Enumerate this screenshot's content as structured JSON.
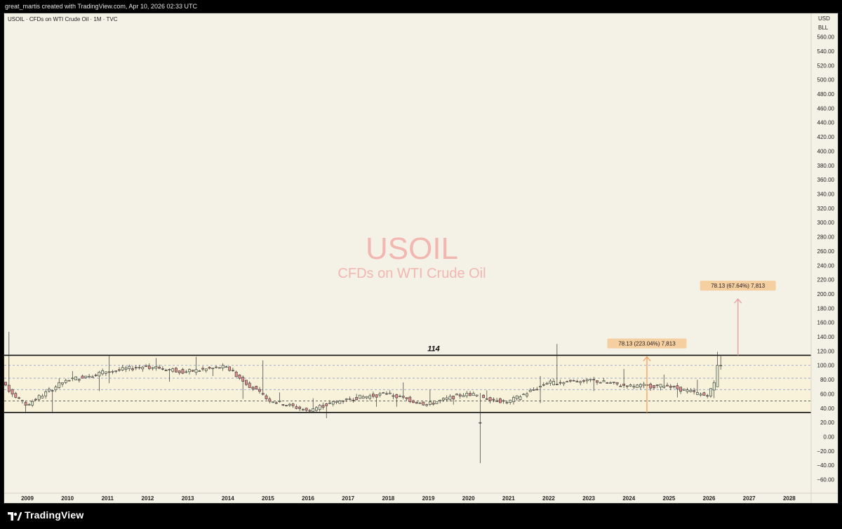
{
  "header": {
    "attribution": "great_martis created with TradingView.com, Apr 10, 2026 02:33 UTC"
  },
  "footer": {
    "brand": "TradingView",
    "logo_icon": "tradingview-logo-icon"
  },
  "colors": {
    "background": "#f4f1e6",
    "bull_candle": "#e3ecd0",
    "bear_candle": "#e38d8d",
    "wick": "#333333",
    "arrow_orange": "#f2a46c",
    "arrow_pink": "#eaa1a1",
    "label_bg": "#f6cfa1",
    "watermark": "#f2b7b0",
    "range_fill": "#f7f2d9",
    "dashed_blue": "#8a9cd0"
  },
  "chart_data": {
    "type": "candlestick",
    "symbol_line": "USOIL · CFDs on WTI Crude Oil · 1M · TVC",
    "watermark": {
      "symbol": "USOIL",
      "description": "CFDs on WTI Crude Oil"
    },
    "currency_badges": [
      "USD",
      "BLL"
    ],
    "y_axis": {
      "min": -60,
      "max": 560,
      "ticks": [
        "560.00",
        "540.00",
        "520.00",
        "500.00",
        "480.00",
        "460.00",
        "440.00",
        "420.00",
        "400.00",
        "380.00",
        "360.00",
        "340.00",
        "320.00",
        "300.00",
        "280.00",
        "260.00",
        "240.00",
        "220.00",
        "200.00",
        "180.00",
        "160.00",
        "140.00",
        "120.00",
        "100.00",
        "80.00",
        "60.00",
        "40.00",
        "20.00",
        "0.00",
        "−20.00",
        "−40.00",
        "−60.00"
      ]
    },
    "x_axis": {
      "start_year": 2009,
      "ticks": [
        "2009",
        "2010",
        "2011",
        "2012",
        "2013",
        "2014",
        "2015",
        "2016",
        "2017",
        "2018",
        "2019",
        "2020",
        "2021",
        "2022",
        "2023",
        "2024",
        "2025",
        "2026",
        "2027",
        "2028"
      ]
    },
    "levels": {
      "range_top": 114,
      "range_bottom": 34,
      "dashed_blue": [
        100,
        82,
        66
      ],
      "dashed_black": 50
    },
    "level_label": "114",
    "yearly_candles": [
      {
        "year": 2008,
        "open": 95,
        "high": 147,
        "low": 33,
        "close": 44
      },
      {
        "year": 2009,
        "open": 44,
        "high": 82,
        "low": 33,
        "close": 79
      },
      {
        "year": 2010,
        "open": 79,
        "high": 92,
        "low": 64,
        "close": 91
      },
      {
        "year": 2011,
        "open": 91,
        "high": 114,
        "low": 75,
        "close": 99
      },
      {
        "year": 2012,
        "open": 99,
        "high": 110,
        "low": 77,
        "close": 91
      },
      {
        "year": 2013,
        "open": 91,
        "high": 112,
        "low": 85,
        "close": 98
      },
      {
        "year": 2014,
        "open": 98,
        "high": 107,
        "low": 53,
        "close": 53
      },
      {
        "year": 2015,
        "open": 53,
        "high": 62,
        "low": 34,
        "close": 37
      },
      {
        "year": 2016,
        "open": 37,
        "high": 54,
        "low": 26,
        "close": 53
      },
      {
        "year": 2017,
        "open": 53,
        "high": 60,
        "low": 42,
        "close": 60
      },
      {
        "year": 2018,
        "open": 60,
        "high": 76,
        "low": 42,
        "close": 45
      },
      {
        "year": 2019,
        "open": 45,
        "high": 66,
        "low": 45,
        "close": 61
      },
      {
        "year": 2020,
        "open": 61,
        "high": 65,
        "low": -37,
        "close": 48
      },
      {
        "year": 2021,
        "open": 48,
        "high": 85,
        "low": 47,
        "close": 75
      },
      {
        "year": 2022,
        "open": 75,
        "high": 130,
        "low": 71,
        "close": 80
      },
      {
        "year": 2023,
        "open": 80,
        "high": 95,
        "low": 64,
        "close": 71
      },
      {
        "year": 2024,
        "open": 71,
        "high": 87,
        "low": 65,
        "close": 71
      },
      {
        "year": 2025,
        "open": 71,
        "high": 80,
        "low": 55,
        "close": 57
      },
      {
        "year": 2026,
        "open": 57,
        "high": 119,
        "low": 54,
        "close": 100
      }
    ],
    "annotations": [
      {
        "label": "78.13 (223.04%) 7,813",
        "from_value": 34,
        "to_value": 112,
        "x_year": 2024.45
      },
      {
        "label": "78.13 (67.64%) 7,813",
        "from_value": 114,
        "to_value": 193,
        "x_year": 2026.72
      }
    ]
  }
}
